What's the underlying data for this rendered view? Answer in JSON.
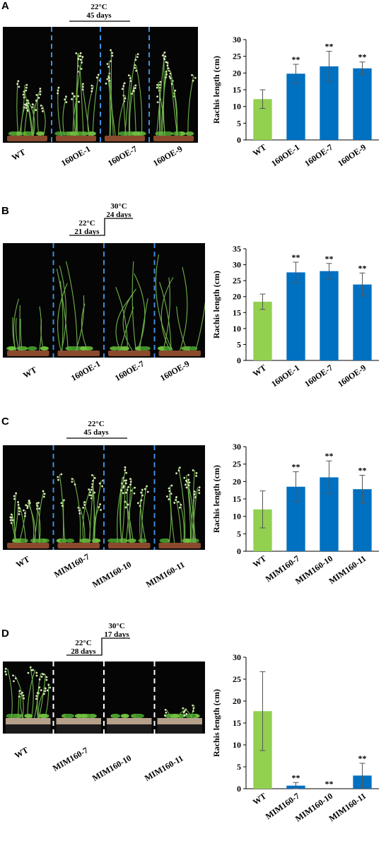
{
  "panels": [
    {
      "letter": "A",
      "condition_lines": [
        "22°C",
        "45 days"
      ],
      "photo_labels": [
        "WT",
        "160OE-1",
        "160OE-7",
        "160OE-9"
      ],
      "divider_color": "#3d8fe0",
      "photo_kind": "flowering"
    },
    {
      "letter": "B",
      "condition_lines": [
        "22°C",
        "21 days",
        "30°C",
        "24 days"
      ],
      "photo_labels": [
        "WT",
        "160OE-1",
        "160OE-7",
        "160OE-9"
      ],
      "divider_color": "#3d8fe0",
      "photo_kind": "elongated"
    },
    {
      "letter": "C",
      "condition_lines": [
        "22°C",
        "45 days"
      ],
      "photo_labels": [
        "WT",
        "MIM160-7",
        "MIM160-10",
        "MIM160-11"
      ],
      "divider_color": "#3d8fe0",
      "photo_kind": "flowering"
    },
    {
      "letter": "D",
      "condition_lines": [
        "22°C",
        "28 days",
        "30°C",
        "17 days"
      ],
      "photo_labels": [
        "WT",
        "MIM160-7",
        "MIM160-10",
        "MIM160-11"
      ],
      "divider_color": "#ffffff",
      "photo_kind": "short"
    }
  ],
  "colors": {
    "wt": "#92d050",
    "line": "#0070c0"
  },
  "chart_data": [
    {
      "type": "bar",
      "categories": [
        "WT",
        "160OE-1",
        "160OE-7",
        "160OE-9"
      ],
      "values": [
        12.2,
        19.8,
        22.0,
        21.4
      ],
      "errors": [
        2.8,
        2.8,
        4.5,
        1.9
      ],
      "annotations": [
        "",
        "**",
        "**",
        "**"
      ],
      "ylabel": "Rachis length (cm)",
      "ylim": [
        0,
        30
      ],
      "yticks": [
        0,
        5,
        10,
        15,
        20,
        25,
        30
      ]
    },
    {
      "type": "bar",
      "categories": [
        "WT",
        "160OE-1",
        "160OE-7",
        "160OE-9"
      ],
      "values": [
        18.4,
        27.6,
        28.0,
        23.8
      ],
      "errors": [
        2.4,
        3.2,
        2.4,
        3.6
      ],
      "annotations": [
        "",
        "**",
        "**",
        "**"
      ],
      "ylabel": "Rachis length (cm)",
      "ylim": [
        0,
        35
      ],
      "yticks": [
        0,
        5,
        10,
        15,
        20,
        25,
        30,
        35
      ]
    },
    {
      "type": "bar",
      "categories": [
        "WT",
        "MIM160-7",
        "MIM160-10",
        "MIM160-11"
      ],
      "values": [
        12.0,
        18.5,
        21.2,
        17.8
      ],
      "errors": [
        5.3,
        4.3,
        4.7,
        4.0
      ],
      "annotations": [
        "",
        "**",
        "**",
        "**"
      ],
      "ylabel": "Rachis length (cm)",
      "ylim": [
        0,
        30
      ],
      "yticks": [
        0,
        5,
        10,
        15,
        20,
        25,
        30
      ]
    },
    {
      "type": "bar",
      "categories": [
        "WT",
        "MIM160-7",
        "MIM160-10",
        "MIM160-11"
      ],
      "values": [
        17.7,
        0.7,
        0.0,
        3.0
      ],
      "errors": [
        9.0,
        0.7,
        0.0,
        2.8
      ],
      "annotations": [
        "",
        "**",
        "**",
        "**"
      ],
      "ylabel": "Rachis length (cm)",
      "ylim": [
        0,
        30
      ],
      "yticks": [
        0,
        5,
        10,
        15,
        20,
        25,
        30
      ]
    }
  ]
}
